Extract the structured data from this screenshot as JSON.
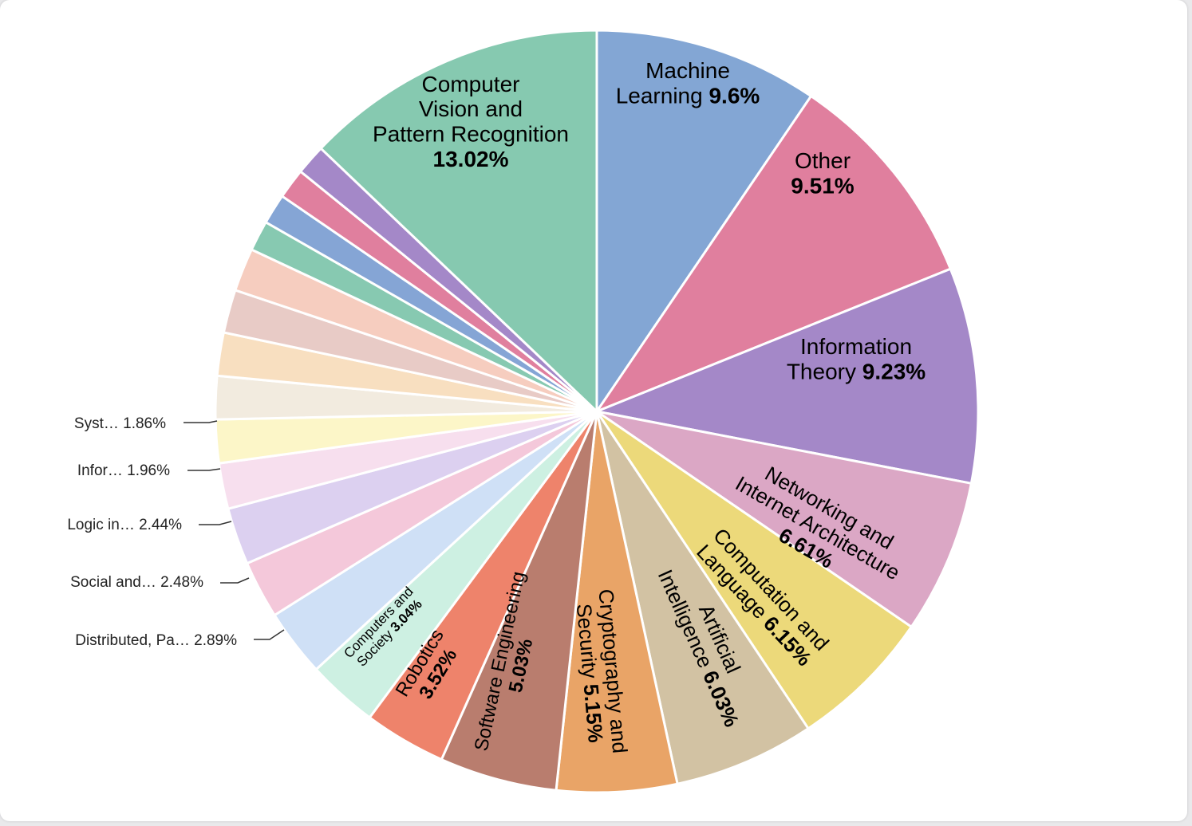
{
  "chart_data": {
    "type": "pie",
    "title": "",
    "slices": [
      {
        "name": "Machine Learning",
        "value": 9.6,
        "label": "9.6%",
        "color": "#83a6d4"
      },
      {
        "name": "Other",
        "value": 9.51,
        "label": "9.51%",
        "color": "#e07f9e"
      },
      {
        "name": "Information Theory",
        "value": 9.23,
        "label": "9.23%",
        "color": "#a488c8"
      },
      {
        "name": "Networking and Internet Architecture",
        "value": 6.61,
        "label": "6.61%",
        "color": "#dba7c5"
      },
      {
        "name": "Computation and Language",
        "value": 6.15,
        "label": "6.15%",
        "color": "#ecd97a"
      },
      {
        "name": "Artificial Intelligence",
        "value": 6.03,
        "label": "6.03%",
        "color": "#d2c2a3"
      },
      {
        "name": "Cryptography and Security",
        "value": 5.15,
        "label": "5.15%",
        "color": "#e9a467"
      },
      {
        "name": "Software Engineering",
        "value": 5.03,
        "label": "5.03%",
        "color": "#b97d6e"
      },
      {
        "name": "Robotics",
        "value": 3.52,
        "label": "3.52%",
        "color": "#ee836b"
      },
      {
        "name": "Computers and Society",
        "value": 3.04,
        "label": "3.04%",
        "color": "#cdf0e2"
      },
      {
        "name": "Distributed, Pa…",
        "value": 2.89,
        "label": "2.89%",
        "color": "#cfe0f6"
      },
      {
        "name": "Social and…",
        "value": 2.48,
        "label": "2.48%",
        "color": "#f4c8da"
      },
      {
        "name": "Logic in…",
        "value": 2.44,
        "label": "2.44%",
        "color": "#dcd0f0"
      },
      {
        "name": "Infor…",
        "value": 1.96,
        "label": "1.96%",
        "color": "#f7dfee"
      },
      {
        "name": "Syst…",
        "value": 1.86,
        "label": "1.86%",
        "color": "#fcf6c8"
      },
      {
        "name": "",
        "value": 1.85,
        "label": "",
        "color": "#f2ebdf"
      },
      {
        "name": "",
        "value": 1.85,
        "label": "",
        "color": "#f8dfc0"
      },
      {
        "name": "",
        "value": 1.85,
        "label": "",
        "color": "#e8cbc6"
      },
      {
        "name": "",
        "value": 1.85,
        "label": "",
        "color": "#f6cdbf"
      },
      {
        "name": "",
        "value": 1.3,
        "label": "",
        "color": "#87c9b1"
      },
      {
        "name": "",
        "value": 1.3,
        "label": "",
        "color": "#85a5d5"
      },
      {
        "name": "",
        "value": 1.3,
        "label": "",
        "color": "#e07f9e"
      },
      {
        "name": "",
        "value": 1.3,
        "label": "",
        "color": "#a488c8"
      },
      {
        "name": "Computer Vision and Pattern Recognition",
        "value": 13.02,
        "label": "13.02%",
        "color": "#86c9b0"
      }
    ],
    "inside_labels": [
      {
        "lines": [
          {
            "t": "Machine"
          },
          {
            "t": "Learning ",
            "b": "9.6%"
          }
        ]
      },
      {
        "lines": [
          {
            "t": "Other"
          },
          {
            "b": "9.51%"
          }
        ]
      },
      {
        "lines": [
          {
            "t": "Information"
          },
          {
            "t": "Theory ",
            "b": "9.23%"
          }
        ]
      },
      {
        "lines": [
          {
            "t": "Networking and"
          },
          {
            "t": "Internet Architecture"
          },
          {
            "b": "6.61%"
          }
        ]
      },
      {
        "lines": [
          {
            "t": "Computation and"
          },
          {
            "t": "Language ",
            "b": "6.15%"
          }
        ]
      },
      {
        "lines": [
          {
            "t": "Artificial"
          },
          {
            "t": "Intelligence ",
            "b": "6.03%"
          }
        ]
      },
      {
        "lines": [
          {
            "t": "Cryptography and"
          },
          {
            "t": "Security ",
            "b": "5.15%"
          }
        ]
      },
      {
        "lines": [
          {
            "t": "Software Engineering"
          },
          {
            "b": "5.03%"
          }
        ]
      },
      {
        "lines": [
          {
            "t": "Robotics"
          },
          {
            "b": "3.52%"
          }
        ]
      },
      {
        "lines": [
          {
            "t": "Computers and"
          },
          {
            "t": "Society ",
            "b": "3.04%"
          }
        ]
      },
      {
        "lines": []
      },
      {
        "lines": []
      },
      {
        "lines": []
      },
      {
        "lines": []
      },
      {
        "lines": []
      },
      {
        "lines": []
      },
      {
        "lines": []
      },
      {
        "lines": []
      },
      {
        "lines": []
      },
      {
        "lines": []
      },
      {
        "lines": []
      },
      {
        "lines": []
      },
      {
        "lines": []
      },
      {
        "lines": [
          {
            "t": "Computer"
          },
          {
            "t": "Vision and"
          },
          {
            "t": "Pattern Recognition"
          },
          {
            "b": "13.02%"
          }
        ]
      }
    ],
    "outside_labels": [
      {
        "name": "Syst…",
        "value": "1.86%"
      },
      {
        "name": "Infor…",
        "value": "1.96%"
      },
      {
        "name": "Logic in…",
        "value": "2.44%"
      },
      {
        "name": "Social and…",
        "value": "2.48%"
      },
      {
        "name": "Distributed, Pa…",
        "value": "2.89%"
      }
    ],
    "legend": "none"
  }
}
